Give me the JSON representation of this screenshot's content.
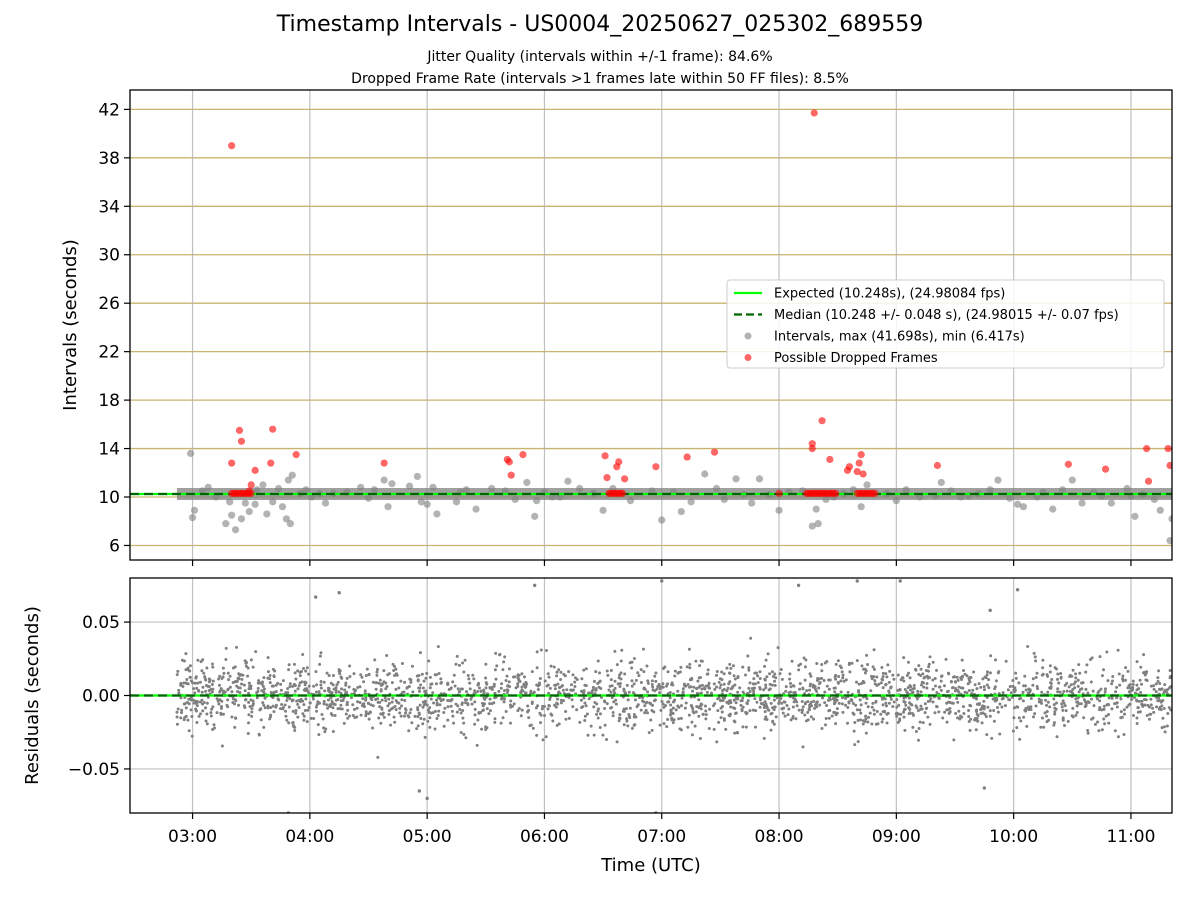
{
  "title": "Timestamp Intervals - US0004_20250627_025302_689559",
  "subtitle_1": "Jitter Quality (intervals within +/-1 frame): 84.6%",
  "subtitle_2": "Dropped Frame Rate (intervals >1 frames late within 50 FF files): 8.5%",
  "colors": {
    "expected": "#00ff00",
    "median": "#006400",
    "intervals": "#808080",
    "dropped": "#ff0000",
    "hgrid_top": "#c8b46e",
    "grid": "#b0b0b0"
  },
  "chart_data": [
    {
      "type": "scatter",
      "panel": "intervals",
      "ylabel": "Intervals (seconds)",
      "xlabel": "",
      "xlim": [
        "02:28",
        "11:21"
      ],
      "ylim": [
        4.8,
        43.6
      ],
      "x_ticks": [
        "03:00",
        "04:00",
        "05:00",
        "06:00",
        "07:00",
        "08:00",
        "09:00",
        "10:00",
        "11:00"
      ],
      "y_ticks": [
        6,
        10,
        14,
        18,
        22,
        26,
        30,
        34,
        38,
        42
      ],
      "grid": true,
      "legend_placement": "center-right",
      "legend": [
        {
          "label": "Expected (10.248s), (24.98084 fps)",
          "kind": "solid-line",
          "color": "#00ff00"
        },
        {
          "label": "Median (10.248 +/- 0.048 s), (24.98015 +/- 0.07 fps)",
          "kind": "dashed-line",
          "color": "#006400"
        },
        {
          "label": "Intervals, max (41.698s), min (6.417s)",
          "kind": "marker",
          "color": "#808080"
        },
        {
          "label": "Possible Dropped Frames",
          "kind": "marker",
          "color": "#ff0000"
        }
      ],
      "lines": {
        "expected": 10.248,
        "median": 10.248
      },
      "series": [
        {
          "name": "Intervals, max (41.698s), min (6.417s)",
          "points": [
            [
              "02:59",
              13.6
            ],
            [
              "03:00",
              8.3
            ],
            [
              "03:01",
              8.9
            ],
            [
              "03:05",
              10.5
            ],
            [
              "03:08",
              10.8
            ],
            [
              "03:12",
              10.0
            ],
            [
              "03:17",
              7.8
            ],
            [
              "03:19",
              9.6
            ],
            [
              "03:20",
              8.5
            ],
            [
              "03:22",
              7.3
            ],
            [
              "03:25",
              8.2
            ],
            [
              "03:27",
              9.5
            ],
            [
              "03:29",
              8.8
            ],
            [
              "03:32",
              9.4
            ],
            [
              "03:33",
              10.6
            ],
            [
              "03:36",
              11.0
            ],
            [
              "03:38",
              8.6
            ],
            [
              "03:41",
              9.6
            ],
            [
              "03:44",
              10.7
            ],
            [
              "03:46",
              9.2
            ],
            [
              "03:48",
              8.2
            ],
            [
              "03:49",
              11.4
            ],
            [
              "03:50",
              7.8
            ],
            [
              "03:51",
              11.8
            ],
            [
              "03:55",
              10.3
            ],
            [
              "03:58",
              10.6
            ],
            [
              "04:01",
              10.0
            ],
            [
              "04:05",
              10.3
            ],
            [
              "04:08",
              9.5
            ],
            [
              "04:12",
              10.3
            ],
            [
              "04:19",
              10.4
            ],
            [
              "04:26",
              10.8
            ],
            [
              "04:30",
              9.9
            ],
            [
              "04:33",
              10.6
            ],
            [
              "04:38",
              11.4
            ],
            [
              "04:40",
              9.2
            ],
            [
              "04:42",
              11.1
            ],
            [
              "04:51",
              10.9
            ],
            [
              "04:55",
              11.7
            ],
            [
              "04:57",
              9.6
            ],
            [
              "05:00",
              9.4
            ],
            [
              "05:03",
              10.8
            ],
            [
              "05:05",
              8.6
            ],
            [
              "05:15",
              9.6
            ],
            [
              "05:17",
              10.4
            ],
            [
              "05:20",
              10.6
            ],
            [
              "05:25",
              9.0
            ],
            [
              "05:33",
              10.7
            ],
            [
              "05:40",
              10.5
            ],
            [
              "05:45",
              9.8
            ],
            [
              "05:51",
              11.2
            ],
            [
              "05:55",
              8.4
            ],
            [
              "05:56",
              9.7
            ],
            [
              "06:00",
              10.4
            ],
            [
              "06:04",
              10.0
            ],
            [
              "06:08",
              10.0
            ],
            [
              "06:12",
              11.3
            ],
            [
              "06:18",
              10.7
            ],
            [
              "06:25",
              10.3
            ],
            [
              "06:30",
              8.9
            ],
            [
              "06:35",
              10.7
            ],
            [
              "06:44",
              9.7
            ],
            [
              "06:55",
              10.5
            ],
            [
              "07:00",
              8.1
            ],
            [
              "07:06",
              10.4
            ],
            [
              "07:10",
              8.8
            ],
            [
              "07:15",
              9.6
            ],
            [
              "07:22",
              11.9
            ],
            [
              "07:28",
              10.7
            ],
            [
              "07:32",
              9.8
            ],
            [
              "07:38",
              11.5
            ],
            [
              "07:42",
              10.2
            ],
            [
              "07:46",
              9.5
            ],
            [
              "07:50",
              11.5
            ],
            [
              "07:55",
              10.2
            ],
            [
              "08:00",
              8.9
            ],
            [
              "08:05",
              10.4
            ],
            [
              "08:12",
              10.5
            ],
            [
              "08:17",
              7.6
            ],
            [
              "08:19",
              9.0
            ],
            [
              "08:20",
              7.8
            ],
            [
              "08:24",
              9.8
            ],
            [
              "08:28",
              10.0
            ],
            [
              "08:33",
              10.3
            ],
            [
              "08:38",
              10.6
            ],
            [
              "08:42",
              9.2
            ],
            [
              "08:45",
              11.0
            ],
            [
              "08:55",
              10.3
            ],
            [
              "09:00",
              9.7
            ],
            [
              "09:05",
              10.6
            ],
            [
              "09:12",
              10.0
            ],
            [
              "09:20",
              10.1
            ],
            [
              "09:23",
              11.2
            ],
            [
              "09:28",
              10.5
            ],
            [
              "09:33",
              10.0
            ],
            [
              "09:37",
              10.1
            ],
            [
              "09:42",
              10.3
            ],
            [
              "09:48",
              10.6
            ],
            [
              "09:52",
              11.4
            ],
            [
              "09:58",
              9.9
            ],
            [
              "10:02",
              9.4
            ],
            [
              "10:05",
              9.2
            ],
            [
              "10:12",
              10.0
            ],
            [
              "10:15",
              10.4
            ],
            [
              "10:20",
              9.0
            ],
            [
              "10:25",
              10.6
            ],
            [
              "10:30",
              11.4
            ],
            [
              "10:35",
              9.5
            ],
            [
              "10:41",
              10.4
            ],
            [
              "10:45",
              10.1
            ],
            [
              "10:50",
              9.5
            ],
            [
              "10:58",
              10.7
            ],
            [
              "11:00",
              10.1
            ],
            [
              "11:02",
              8.4
            ],
            [
              "11:06",
              10.2
            ],
            [
              "11:12",
              9.8
            ],
            [
              "11:15",
              8.9
            ],
            [
              "11:20",
              6.4
            ],
            [
              "11:21",
              8.2
            ]
          ]
        },
        {
          "name": "Possible Dropped Frames",
          "points": [
            [
              "03:20",
              10.3
            ],
            [
              "03:21",
              10.3
            ],
            [
              "03:22",
              10.3
            ],
            [
              "03:23",
              10.3
            ],
            [
              "03:24",
              10.3
            ],
            [
              "03:25",
              10.3
            ],
            [
              "03:26",
              10.3
            ],
            [
              "03:27",
              10.3
            ],
            [
              "03:28",
              10.3
            ],
            [
              "03:29",
              10.3
            ],
            [
              "03:30",
              10.3
            ],
            [
              "03:20",
              12.8
            ],
            [
              "03:24",
              15.5
            ],
            [
              "03:25",
              14.6
            ],
            [
              "03:29",
              10.5
            ],
            [
              "03:30",
              11.0
            ],
            [
              "03:32",
              12.2
            ],
            [
              "03:40",
              12.8
            ],
            [
              "03:41",
              15.6
            ],
            [
              "03:53",
              13.5
            ],
            [
              "04:38",
              12.8
            ],
            [
              "05:41",
              13.1
            ],
            [
              "05:42",
              12.9
            ],
            [
              "05:43",
              11.8
            ],
            [
              "05:49",
              13.5
            ],
            [
              "06:31",
              13.4
            ],
            [
              "06:32",
              11.6
            ],
            [
              "06:37",
              12.5
            ],
            [
              "06:38",
              12.9
            ],
            [
              "06:41",
              11.5
            ],
            [
              "06:33",
              10.3
            ],
            [
              "06:34",
              10.3
            ],
            [
              "06:35",
              10.3
            ],
            [
              "06:36",
              10.3
            ],
            [
              "06:37",
              10.3
            ],
            [
              "06:38",
              10.3
            ],
            [
              "06:39",
              10.3
            ],
            [
              "06:40",
              10.3
            ],
            [
              "06:57",
              12.5
            ],
            [
              "07:13",
              13.3
            ],
            [
              "07:27",
              13.7
            ],
            [
              "08:00",
              10.3
            ],
            [
              "08:17",
              14.4
            ],
            [
              "08:17",
              14.0
            ],
            [
              "08:18",
              41.7
            ],
            [
              "08:22",
              16.3
            ],
            [
              "08:14",
              10.3
            ],
            [
              "08:15",
              10.3
            ],
            [
              "08:16",
              10.3
            ],
            [
              "08:17",
              10.3
            ],
            [
              "08:18",
              10.3
            ],
            [
              "08:19",
              10.3
            ],
            [
              "08:20",
              10.3
            ],
            [
              "08:21",
              10.3
            ],
            [
              "08:22",
              10.3
            ],
            [
              "08:23",
              10.3
            ],
            [
              "08:24",
              10.3
            ],
            [
              "08:25",
              10.3
            ],
            [
              "08:26",
              10.3
            ],
            [
              "08:27",
              10.3
            ],
            [
              "08:28",
              10.3
            ],
            [
              "08:29",
              10.3
            ],
            [
              "08:26",
              13.1
            ],
            [
              "08:35",
              12.2
            ],
            [
              "08:36",
              12.5
            ],
            [
              "08:40",
              12.1
            ],
            [
              "08:41",
              12.8
            ],
            [
              "08:42",
              13.5
            ],
            [
              "08:43",
              11.9
            ],
            [
              "08:40",
              10.3
            ],
            [
              "08:41",
              10.3
            ],
            [
              "08:42",
              10.3
            ],
            [
              "08:43",
              10.3
            ],
            [
              "08:44",
              10.3
            ],
            [
              "08:45",
              10.3
            ],
            [
              "08:46",
              10.3
            ],
            [
              "08:47",
              10.3
            ],
            [
              "08:48",
              10.3
            ],
            [
              "08:49",
              10.3
            ],
            [
              "09:21",
              12.6
            ],
            [
              "10:28",
              12.7
            ],
            [
              "10:47",
              12.3
            ],
            [
              "11:08",
              14.0
            ],
            [
              "11:09",
              11.3
            ],
            [
              "11:19",
              14.0
            ],
            [
              "11:20",
              12.6
            ],
            [
              "03:20",
              39.0
            ]
          ]
        }
      ]
    },
    {
      "type": "scatter",
      "panel": "residuals",
      "ylabel": "Residuals (seconds)",
      "xlabel": "Time (UTC)",
      "xlim": [
        "02:28",
        "11:21"
      ],
      "ylim": [
        -0.08,
        0.08
      ],
      "x_ticks": [
        "03:00",
        "04:00",
        "05:00",
        "06:00",
        "07:00",
        "08:00",
        "09:00",
        "10:00",
        "11:00"
      ],
      "y_ticks": [
        -0.05,
        0.0,
        0.05
      ],
      "y_tick_labels": [
        "−0.05",
        "0.00",
        "0.05"
      ],
      "grid": true,
      "zero_line": 0.0,
      "residuals": {
        "time_range": [
          "02:52",
          "11:21"
        ],
        "spread": 0.02,
        "outliers": [
          [
            "03:49",
            -0.08
          ],
          [
            "04:03",
            0.067
          ],
          [
            "04:15",
            0.07
          ],
          [
            "04:56",
            -0.065
          ],
          [
            "05:00",
            -0.07
          ],
          [
            "05:55",
            0.075
          ],
          [
            "06:57",
            -0.08
          ],
          [
            "07:00",
            0.078
          ],
          [
            "08:10",
            0.075
          ],
          [
            "08:40",
            0.078
          ],
          [
            "09:02",
            0.078
          ],
          [
            "09:45",
            -0.063
          ],
          [
            "10:02",
            0.072
          ],
          [
            "09:48",
            0.058
          ]
        ]
      }
    }
  ]
}
